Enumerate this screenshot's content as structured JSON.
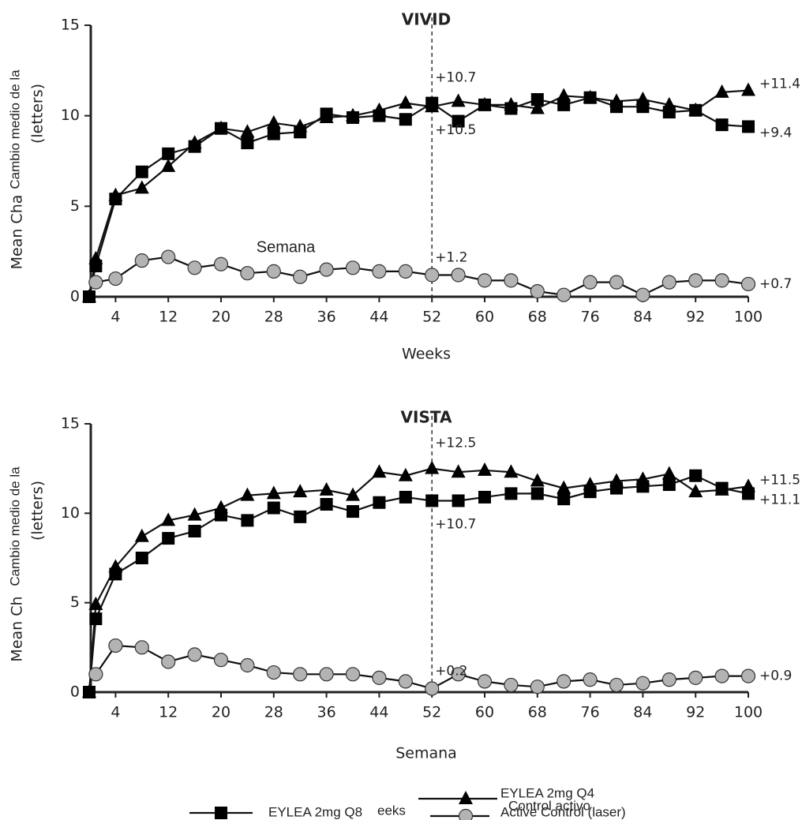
{
  "chart_data": [
    {
      "type": "line",
      "title": "VIVID",
      "xlabel": "Weeks",
      "overlay_text": "Semana",
      "ylabel": [
        "Cambio medio de la",
        "(letters)",
        "Mean Cha"
      ],
      "xlim": [
        0,
        100
      ],
      "ylim": [
        0,
        15
      ],
      "xticks": [
        4,
        12,
        20,
        28,
        36,
        44,
        52,
        60,
        68,
        76,
        84,
        92,
        100
      ],
      "yticks": [
        0,
        5,
        10,
        15
      ],
      "vline": 52,
      "x": [
        0,
        1,
        4,
        8,
        12,
        16,
        20,
        24,
        28,
        32,
        36,
        40,
        44,
        48,
        52,
        56,
        60,
        64,
        68,
        72,
        76,
        80,
        84,
        88,
        92,
        96,
        100
      ],
      "series": [
        {
          "name": "EYLEA 2mg Q8",
          "color": "#000000",
          "marker": "square",
          "values": [
            0,
            1.7,
            5.4,
            6.9,
            7.9,
            8.3,
            9.3,
            8.5,
            9.0,
            9.1,
            10.1,
            9.9,
            10.0,
            9.8,
            10.7,
            9.7,
            10.6,
            10.4,
            10.9,
            10.6,
            11.0,
            10.5,
            10.5,
            10.2,
            10.3,
            9.5,
            9.4
          ],
          "value_labels": [
            null,
            null,
            null,
            null,
            null,
            null,
            null,
            null,
            null,
            null,
            null,
            null,
            null,
            null,
            "+10.7",
            null,
            null,
            null,
            null,
            null,
            null,
            null,
            null,
            null,
            null,
            null,
            "+9.4"
          ]
        },
        {
          "name": "EYLEA 2mg Q4",
          "color": "#000000",
          "marker": "triangle",
          "values": [
            0,
            2.1,
            5.6,
            6.0,
            7.2,
            8.5,
            9.3,
            9.1,
            9.6,
            9.4,
            9.9,
            10.0,
            10.3,
            10.7,
            10.5,
            10.8,
            10.6,
            10.6,
            10.4,
            11.1,
            11.0,
            10.8,
            10.9,
            10.6,
            10.3,
            11.3,
            11.4
          ],
          "value_labels": [
            null,
            null,
            null,
            null,
            null,
            null,
            null,
            null,
            null,
            null,
            null,
            null,
            null,
            null,
            "+10.5",
            null,
            null,
            null,
            null,
            null,
            null,
            null,
            null,
            null,
            null,
            null,
            "+11.4"
          ]
        },
        {
          "name": "Active Control (laser)",
          "color": "#b3b3b3",
          "marker": "circle",
          "values": [
            null,
            0.8,
            1.0,
            2.0,
            2.2,
            1.6,
            1.8,
            1.3,
            1.4,
            1.1,
            1.5,
            1.6,
            1.4,
            1.4,
            1.2,
            1.2,
            0.9,
            0.9,
            0.3,
            0.1,
            0.8,
            0.8,
            0.1,
            0.8,
            0.9,
            0.9,
            0.7
          ],
          "value_labels": [
            null,
            null,
            null,
            null,
            null,
            null,
            null,
            null,
            null,
            null,
            null,
            null,
            null,
            null,
            "+1.2",
            null,
            null,
            null,
            null,
            null,
            null,
            null,
            null,
            null,
            null,
            null,
            "+0.7"
          ]
        }
      ]
    },
    {
      "type": "line",
      "title": "VISTA",
      "xlabel": "Semana",
      "ylabel": [
        "Cambio medio de la",
        "(letters)",
        "Mean Ch"
      ],
      "xlim": [
        0,
        100
      ],
      "ylim": [
        0,
        15
      ],
      "xticks": [
        4,
        12,
        20,
        28,
        36,
        44,
        52,
        60,
        68,
        76,
        84,
        92,
        100
      ],
      "yticks": [
        0,
        5,
        10,
        15
      ],
      "vline": 52,
      "x": [
        0,
        1,
        4,
        8,
        12,
        16,
        20,
        24,
        28,
        32,
        36,
        40,
        44,
        48,
        52,
        56,
        60,
        64,
        68,
        72,
        76,
        80,
        84,
        88,
        92,
        96,
        100
      ],
      "series": [
        {
          "name": "EYLEA 2mg Q8",
          "color": "#000000",
          "marker": "square",
          "values": [
            0,
            4.1,
            6.6,
            7.5,
            8.6,
            9.0,
            9.9,
            9.6,
            10.3,
            9.8,
            10.5,
            10.1,
            10.6,
            10.9,
            10.7,
            10.7,
            10.9,
            11.1,
            11.1,
            10.8,
            11.2,
            11.4,
            11.5,
            11.6,
            12.1,
            11.4,
            11.1
          ],
          "value_labels": [
            null,
            null,
            null,
            null,
            null,
            null,
            null,
            null,
            null,
            null,
            null,
            null,
            null,
            null,
            "+10.7",
            null,
            null,
            null,
            null,
            null,
            null,
            null,
            null,
            null,
            null,
            null,
            "+11.1"
          ]
        },
        {
          "name": "EYLEA 2mg Q4",
          "color": "#000000",
          "marker": "triangle",
          "values": [
            0,
            4.9,
            7.0,
            8.7,
            9.6,
            9.9,
            10.3,
            11.0,
            11.1,
            11.2,
            11.3,
            11.0,
            12.3,
            12.1,
            12.5,
            12.3,
            12.4,
            12.3,
            11.8,
            11.4,
            11.6,
            11.8,
            11.9,
            12.2,
            11.2,
            11.3,
            11.5
          ],
          "value_labels": [
            null,
            null,
            null,
            null,
            null,
            null,
            null,
            null,
            null,
            null,
            null,
            null,
            null,
            null,
            "+12.5",
            null,
            null,
            null,
            null,
            null,
            null,
            null,
            null,
            null,
            null,
            null,
            "+11.5"
          ]
        },
        {
          "name": "Active Control (laser)",
          "color": "#b3b3b3",
          "marker": "circle",
          "values": [
            null,
            1.0,
            2.6,
            2.5,
            1.7,
            2.1,
            1.8,
            1.5,
            1.1,
            1.0,
            1.0,
            1.0,
            0.8,
            0.6,
            0.2,
            1.0,
            0.6,
            0.4,
            0.3,
            0.6,
            0.7,
            0.4,
            0.5,
            0.7,
            0.8,
            0.9,
            0.9
          ],
          "value_labels": [
            null,
            null,
            null,
            null,
            null,
            null,
            null,
            null,
            null,
            null,
            null,
            null,
            null,
            null,
            "+0.2",
            null,
            null,
            null,
            null,
            null,
            null,
            null,
            null,
            null,
            null,
            null,
            "+0.9"
          ]
        }
      ]
    }
  ],
  "legend_notes": [
    "eeks",
    "Control activo"
  ]
}
